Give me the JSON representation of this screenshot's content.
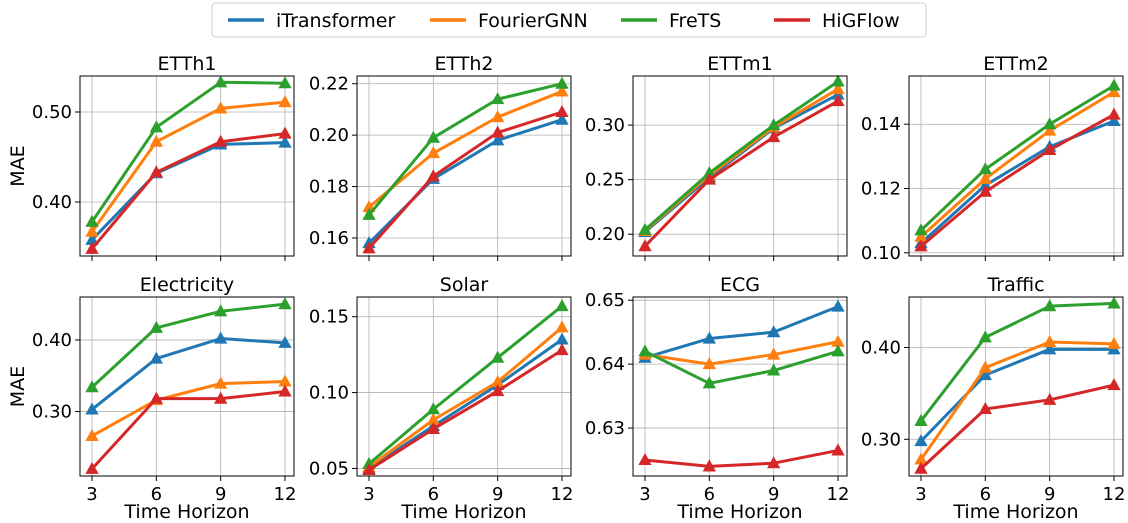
{
  "legend": {
    "placement": "top-center",
    "entries": [
      {
        "name": "iTransformer",
        "color": "#1f77b4"
      },
      {
        "name": "FourierGNN",
        "color": "#ff7f0e"
      },
      {
        "name": "FreTS",
        "color": "#2ca02c"
      },
      {
        "name": "HiGFlow",
        "color": "#d62728"
      }
    ]
  },
  "marker": "triangle-up",
  "grid": true,
  "chart_data": [
    {
      "type": "line",
      "title": "ETTh1",
      "xlabel": "",
      "ylabel": "MAE",
      "categories": [
        "3",
        "6",
        "9",
        "12"
      ],
      "ylim": [
        0.34,
        0.54
      ],
      "yticks": [
        0.4,
        0.5
      ],
      "ytick_labels": [
        "0.40",
        "0.50"
      ],
      "series": [
        {
          "name": "iTransformer",
          "values": [
            0.358,
            0.432,
            0.464,
            0.466
          ]
        },
        {
          "name": "FourierGNN",
          "values": [
            0.367,
            0.467,
            0.504,
            0.511
          ]
        },
        {
          "name": "FreTS",
          "values": [
            0.378,
            0.483,
            0.533,
            0.532
          ]
        },
        {
          "name": "HiGFlow",
          "values": [
            0.348,
            0.433,
            0.467,
            0.476
          ]
        }
      ]
    },
    {
      "type": "line",
      "title": "ETTh2",
      "xlabel": "",
      "ylabel": "",
      "categories": [
        "3",
        "6",
        "9",
        "12"
      ],
      "ylim": [
        0.153,
        0.223
      ],
      "yticks": [
        0.16,
        0.18,
        0.2,
        0.22
      ],
      "ytick_labels": [
        "0.16",
        "0.18",
        "0.20",
        "0.22"
      ],
      "series": [
        {
          "name": "iTransformer",
          "values": [
            0.158,
            0.183,
            0.198,
            0.206
          ]
        },
        {
          "name": "FourierGNN",
          "values": [
            0.172,
            0.193,
            0.207,
            0.217
          ]
        },
        {
          "name": "FreTS",
          "values": [
            0.169,
            0.199,
            0.214,
            0.22
          ]
        },
        {
          "name": "HiGFlow",
          "values": [
            0.156,
            0.184,
            0.201,
            0.209
          ]
        }
      ]
    },
    {
      "type": "line",
      "title": "ETTm1",
      "xlabel": "",
      "ylabel": "",
      "categories": [
        "3",
        "6",
        "9",
        "12"
      ],
      "ylim": [
        0.18,
        0.345
      ],
      "yticks": [
        0.2,
        0.25,
        0.3
      ],
      "ytick_labels": [
        "0.20",
        "0.25",
        "0.30"
      ],
      "series": [
        {
          "name": "iTransformer",
          "values": [
            0.202,
            0.252,
            0.297,
            0.328
          ]
        },
        {
          "name": "FourierGNN",
          "values": [
            0.203,
            0.254,
            0.298,
            0.333
          ]
        },
        {
          "name": "FreTS",
          "values": [
            0.204,
            0.256,
            0.3,
            0.34
          ]
        },
        {
          "name": "HiGFlow",
          "values": [
            0.189,
            0.25,
            0.289,
            0.322
          ]
        }
      ]
    },
    {
      "type": "line",
      "title": "ETTm2",
      "xlabel": "",
      "ylabel": "",
      "categories": [
        "3",
        "6",
        "9",
        "12"
      ],
      "ylim": [
        0.099,
        0.155
      ],
      "yticks": [
        0.1,
        0.12,
        0.14
      ],
      "ytick_labels": [
        "0.10",
        "0.12",
        "0.14"
      ],
      "series": [
        {
          "name": "iTransformer",
          "values": [
            0.103,
            0.121,
            0.133,
            0.141
          ]
        },
        {
          "name": "FourierGNN",
          "values": [
            0.105,
            0.123,
            0.138,
            0.15
          ]
        },
        {
          "name": "FreTS",
          "values": [
            0.107,
            0.126,
            0.14,
            0.152
          ]
        },
        {
          "name": "HiGFlow",
          "values": [
            0.102,
            0.119,
            0.132,
            0.143
          ]
        }
      ]
    },
    {
      "type": "line",
      "title": "Electricity",
      "xlabel": "Time Horizon",
      "ylabel": "MAE",
      "categories": [
        "3",
        "6",
        "9",
        "12"
      ],
      "ylim": [
        0.21,
        0.46
      ],
      "yticks": [
        0.3,
        0.4
      ],
      "ytick_labels": [
        "0.30",
        "0.40"
      ],
      "series": [
        {
          "name": "iTransformer",
          "values": [
            0.303,
            0.374,
            0.402,
            0.396
          ]
        },
        {
          "name": "FourierGNN",
          "values": [
            0.266,
            0.316,
            0.339,
            0.342
          ]
        },
        {
          "name": "FreTS",
          "values": [
            0.334,
            0.417,
            0.44,
            0.45
          ]
        },
        {
          "name": "HiGFlow",
          "values": [
            0.22,
            0.318,
            0.318,
            0.328
          ]
        }
      ]
    },
    {
      "type": "line",
      "title": "Solar",
      "xlabel": "Time Horizon",
      "ylabel": "",
      "categories": [
        "3",
        "6",
        "9",
        "12"
      ],
      "ylim": [
        0.045,
        0.163
      ],
      "yticks": [
        0.05,
        0.1,
        0.15
      ],
      "ytick_labels": [
        "0.05",
        "0.10",
        "0.15"
      ],
      "series": [
        {
          "name": "iTransformer",
          "values": [
            0.05,
            0.078,
            0.105,
            0.135
          ]
        },
        {
          "name": "FourierGNN",
          "values": [
            0.051,
            0.082,
            0.107,
            0.143
          ]
        },
        {
          "name": "FreTS",
          "values": [
            0.053,
            0.089,
            0.123,
            0.157
          ]
        },
        {
          "name": "HiGFlow",
          "values": [
            0.049,
            0.076,
            0.101,
            0.128
          ]
        }
      ]
    },
    {
      "type": "line",
      "title": "ECG",
      "xlabel": "Time Horizon",
      "ylabel": "",
      "categories": [
        "3",
        "6",
        "9",
        "12"
      ],
      "ylim": [
        0.6225,
        0.6505
      ],
      "yticks": [
        0.63,
        0.64,
        0.65
      ],
      "ytick_labels": [
        "0.63",
        "0.64",
        "0.65"
      ],
      "series": [
        {
          "name": "iTransformer",
          "values": [
            0.641,
            0.644,
            0.645,
            0.649
          ]
        },
        {
          "name": "FourierGNN",
          "values": [
            0.6415,
            0.64,
            0.6415,
            0.6435
          ]
        },
        {
          "name": "FreTS",
          "values": [
            0.642,
            0.637,
            0.639,
            0.642
          ]
        },
        {
          "name": "HiGFlow",
          "values": [
            0.625,
            0.624,
            0.6245,
            0.6265
          ]
        }
      ]
    },
    {
      "type": "line",
      "title": "Traffic",
      "xlabel": "Time Horizon",
      "ylabel": "",
      "categories": [
        "3",
        "6",
        "9",
        "12"
      ],
      "ylim": [
        0.26,
        0.455
      ],
      "yticks": [
        0.3,
        0.4
      ],
      "ytick_labels": [
        "0.30",
        "0.40"
      ],
      "series": [
        {
          "name": "iTransformer",
          "values": [
            0.298,
            0.37,
            0.398,
            0.398
          ]
        },
        {
          "name": "FourierGNN",
          "values": [
            0.278,
            0.378,
            0.406,
            0.404
          ]
        },
        {
          "name": "FreTS",
          "values": [
            0.32,
            0.411,
            0.445,
            0.448
          ]
        },
        {
          "name": "HiGFlow",
          "values": [
            0.268,
            0.333,
            0.343,
            0.359
          ]
        }
      ]
    }
  ]
}
